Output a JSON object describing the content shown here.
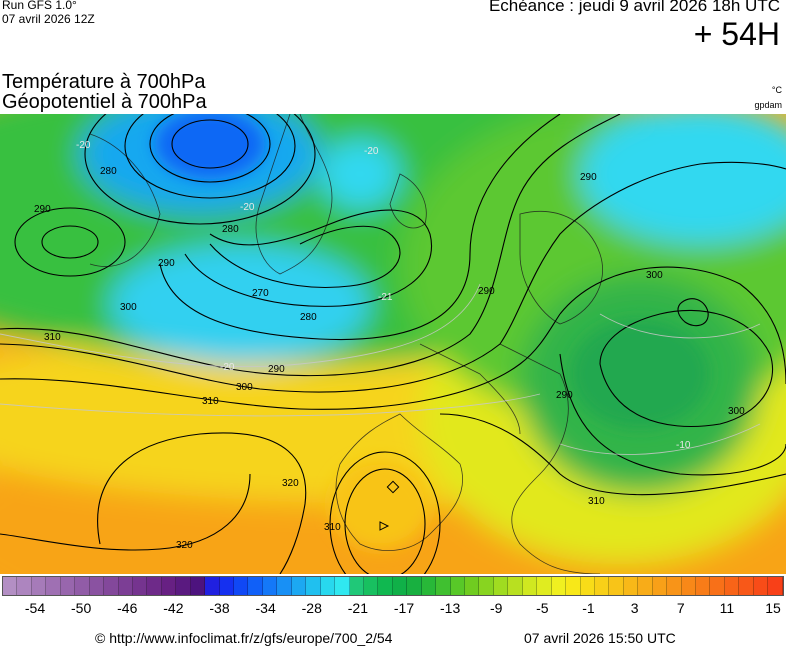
{
  "header": {
    "run_title": "Run GFS 1.0°",
    "run_date": "07 avril 2026 12Z",
    "echeance": "Echéance : jeudi 9 avril 2026 18h UTC",
    "leadtime": "+ 54H"
  },
  "titles": {
    "line1": "Température à 700hPa",
    "line2": "Géopotentiel à 700hPa"
  },
  "units": {
    "temperature": "°C",
    "geopotential": "gpdam"
  },
  "contour_labels": [
    {
      "id": "c280a",
      "text": "280"
    },
    {
      "id": "c290a",
      "text": "290"
    },
    {
      "id": "c290b",
      "text": "290"
    },
    {
      "id": "c280b",
      "text": "280"
    },
    {
      "id": "c270",
      "text": "270"
    },
    {
      "id": "c280c",
      "text": "280"
    },
    {
      "id": "c300a",
      "text": "300"
    },
    {
      "id": "c310a",
      "text": "310"
    },
    {
      "id": "c290c",
      "text": "290"
    },
    {
      "id": "c300b",
      "text": "300"
    },
    {
      "id": "c310b",
      "text": "310"
    },
    {
      "id": "c290d",
      "text": "290"
    },
    {
      "id": "c290e",
      "text": "290"
    },
    {
      "id": "c300c",
      "text": "300"
    },
    {
      "id": "c290f",
      "text": "290"
    },
    {
      "id": "c300d",
      "text": "300"
    },
    {
      "id": "c310c",
      "text": "310"
    },
    {
      "id": "c320a",
      "text": "320"
    },
    {
      "id": "c320b",
      "text": "320"
    },
    {
      "id": "c310d",
      "text": "310"
    }
  ],
  "temp_labels": [
    {
      "id": "t20a",
      "text": "-20"
    },
    {
      "id": "t20b",
      "text": "-20"
    },
    {
      "id": "t20c",
      "text": "-20"
    },
    {
      "id": "t21",
      "text": "-21"
    },
    {
      "id": "t20d",
      "text": "-20"
    },
    {
      "id": "t10",
      "text": "-10"
    }
  ],
  "colorbar": {
    "colors": [
      "#b38fc4",
      "#ad85bf",
      "#a67bb9",
      "#9f70b3",
      "#9866ad",
      "#915ca7",
      "#8a52a1",
      "#83489b",
      "#7c3e95",
      "#75348f",
      "#6e2a89",
      "#672083",
      "#5a1a80",
      "#4d137e",
      "#2020e0",
      "#1530f0",
      "#1048f5",
      "#1060f8",
      "#1478f8",
      "#1890f5",
      "#1ca8f2",
      "#20c0ef",
      "#28d8ee",
      "#30e8f0",
      "#20c878",
      "#18c060",
      "#10b850",
      "#10b048",
      "#18b040",
      "#28b838",
      "#40c030",
      "#58c828",
      "#70cc20",
      "#88d420",
      "#a0dc20",
      "#b8e020",
      "#d0e820",
      "#e0ec20",
      "#f0f020",
      "#f8e818",
      "#f8dc18",
      "#f8d018",
      "#f8c418",
      "#f8b818",
      "#f8ac18",
      "#f8a018",
      "#f89418",
      "#f88818",
      "#f87c18",
      "#f87018",
      "#f86418",
      "#f85818",
      "#f84c18",
      "#f84018"
    ],
    "ticks": [
      "-54",
      "-50",
      "-46",
      "-42",
      "-38",
      "-34",
      "-28",
      "-21",
      "-17",
      "-13",
      "-9",
      "-5",
      "-1",
      "3",
      "7",
      "11",
      "15"
    ]
  },
  "footer": {
    "url": "© http://www.infoclimat.fr/z/gfs/europe/700_2/54",
    "date": "07 avril 2026 15:50 UTC"
  }
}
